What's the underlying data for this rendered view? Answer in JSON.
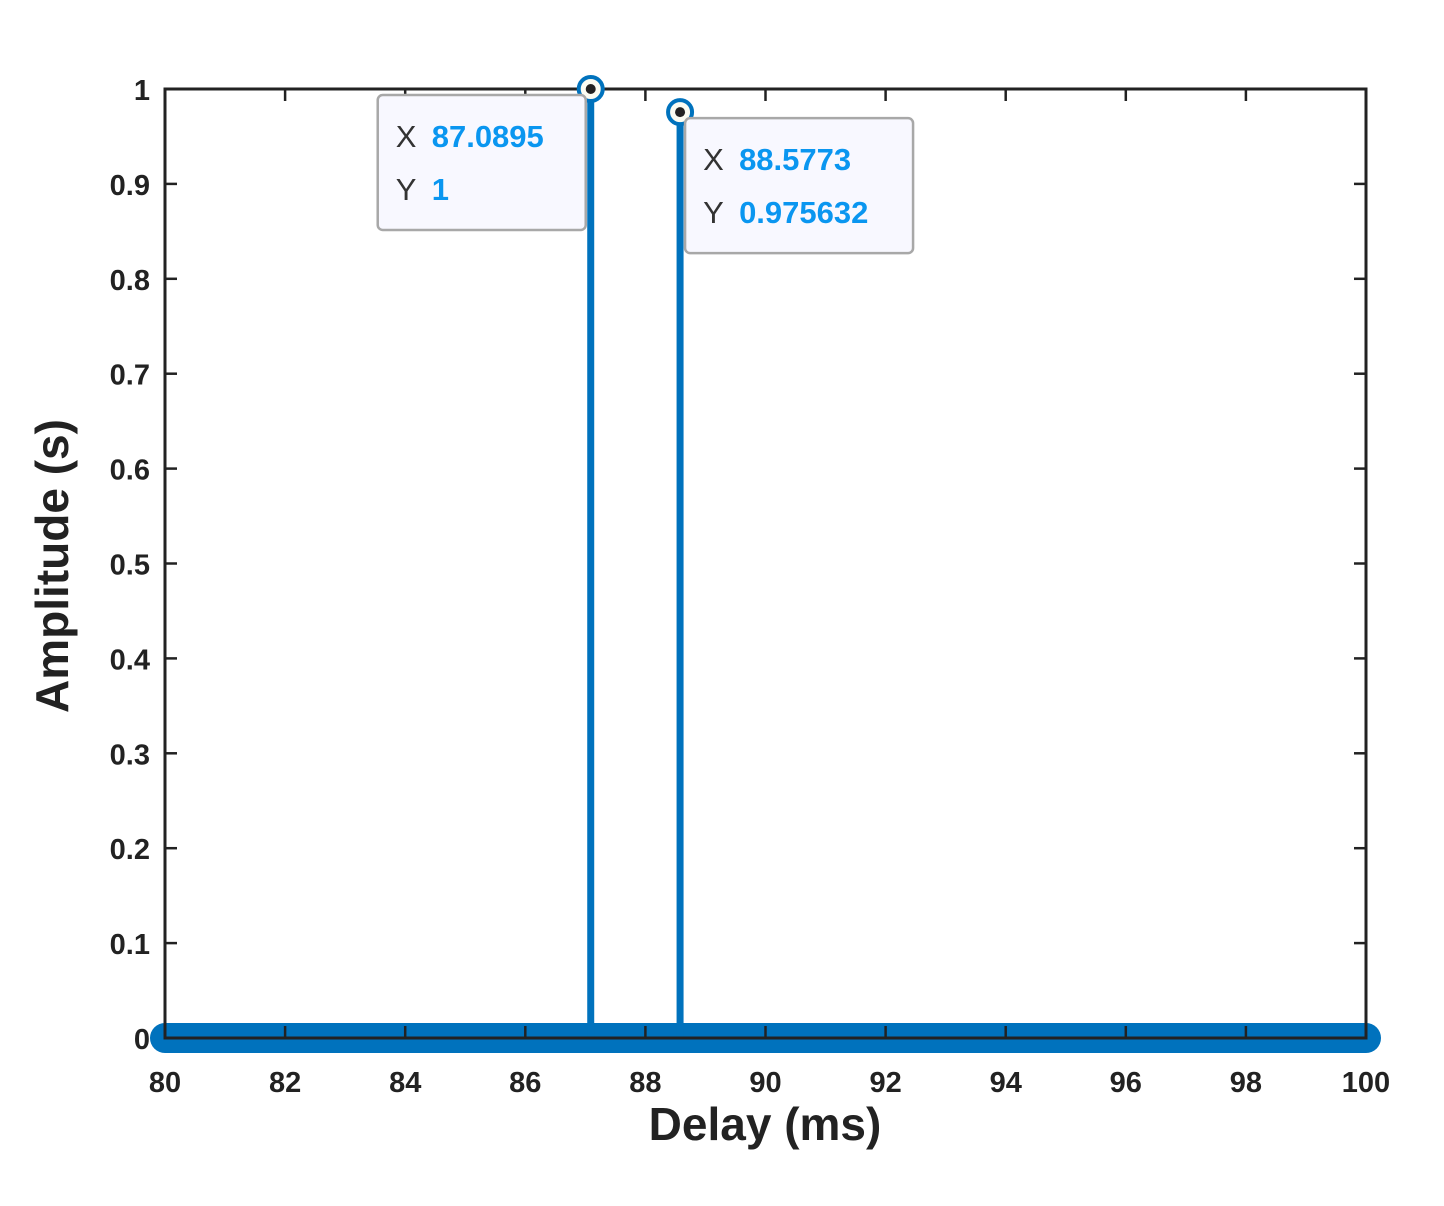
{
  "chart_data": {
    "type": "stem",
    "xlabel": "Delay (ms)",
    "ylabel": "Amplitude (s)",
    "xlim": [
      80,
      100
    ],
    "ylim": [
      0,
      1
    ],
    "x_ticks": [
      80,
      82,
      84,
      86,
      88,
      90,
      92,
      94,
      96,
      98,
      100
    ],
    "y_ticks": [
      0,
      0.1,
      0.2,
      0.3,
      0.4,
      0.5,
      0.6,
      0.7,
      0.8,
      0.9,
      1
    ],
    "y_tick_labels": [
      "0",
      "0.1",
      "0.2",
      "0.3",
      "0.4",
      "0.5",
      "0.6",
      "0.7",
      "0.8",
      "0.9",
      "1"
    ],
    "grid": false,
    "baseline_markers": "dense zero-valued stems across 80-100 ms",
    "series": [
      {
        "color": "#0072bd",
        "points": [
          {
            "x": 87.0895,
            "y": 1
          },
          {
            "x": 88.5773,
            "y": 0.975632
          }
        ]
      }
    ],
    "datatips": [
      {
        "x_key": "X",
        "x_value": "87.0895",
        "y_key": "Y",
        "y_value": "1",
        "target": {
          "x": 87.0895,
          "y": 1
        },
        "placement": "below-left"
      },
      {
        "x_key": "X",
        "x_value": "88.5773",
        "y_key": "Y",
        "y_value": "0.975632",
        "target": {
          "x": 88.5773,
          "y": 0.975632
        },
        "placement": "below-right"
      }
    ]
  }
}
